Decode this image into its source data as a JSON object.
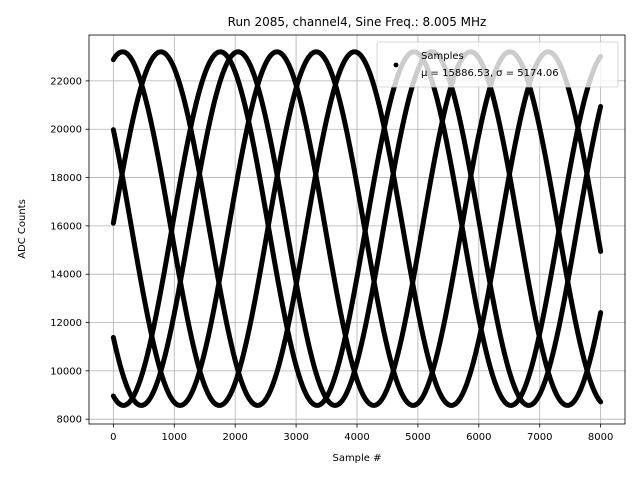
{
  "chart_data": {
    "type": "scatter",
    "title": "Run 2085, channel4, Sine Freq.: 8.005 MHz",
    "xlabel": "Sample #",
    "ylabel": "ADC Counts",
    "xlim": [
      -400,
      8400
    ],
    "ylim": [
      7800,
      23900
    ],
    "xticks": [
      0,
      1000,
      2000,
      3000,
      4000,
      5000,
      6000,
      7000,
      8000
    ],
    "yticks": [
      8000,
      10000,
      12000,
      14000,
      16000,
      18000,
      20000,
      22000
    ],
    "grid": true,
    "legend_position": "top-right",
    "series": [
      {
        "name": "Samples",
        "legend_stats": "μ = 15886.53, σ = 5174.06",
        "color": "#000000",
        "marker": "point",
        "model": "sine",
        "sample_range": [
          0,
          8000
        ],
        "mean": 15886.53,
        "amplitude": 7317,
        "period": 3180,
        "phase_offsets": [
          {
            "start_value": 22880,
            "start_trend": "rising"
          },
          {
            "start_value": 19980,
            "start_trend": "falling"
          },
          {
            "start_value": 16110,
            "start_trend": "rising"
          },
          {
            "start_value": 11380,
            "start_trend": "falling"
          },
          {
            "start_value": 8960,
            "start_trend": "falling"
          }
        ]
      }
    ]
  }
}
